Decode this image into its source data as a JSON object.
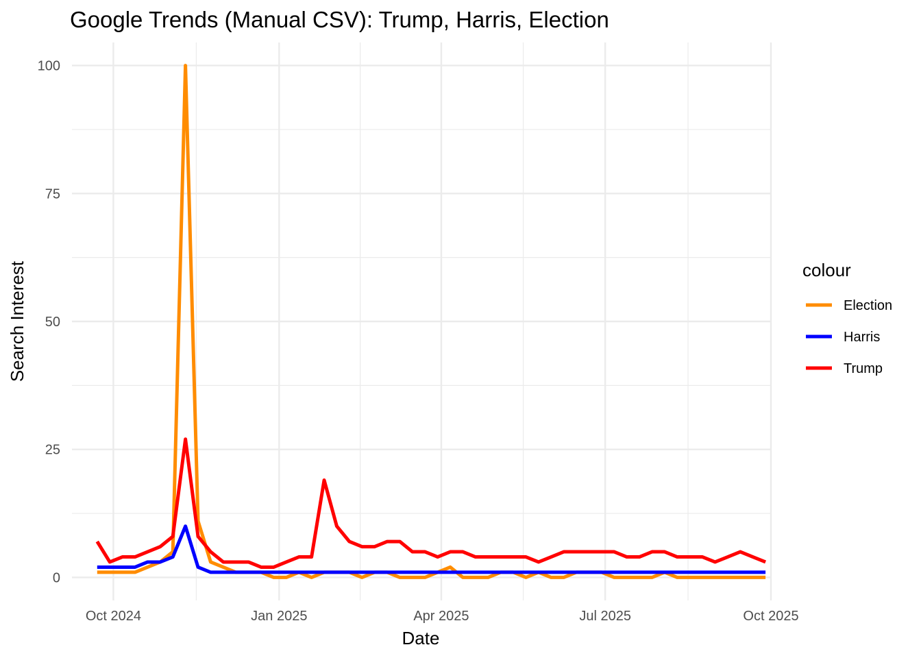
{
  "chart_data": {
    "type": "line",
    "title": "Google Trends (Manual CSV): Trump, Harris, Election",
    "xlabel": "Date",
    "ylabel": "Search Interest",
    "x_tick_labels": [
      "Oct 2024",
      "Jan 2025",
      "Apr 2025",
      "Jul 2025",
      "Oct 2025"
    ],
    "x_tick_dates": [
      "2024-10-01",
      "2025-01-01",
      "2025-04-01",
      "2025-07-01",
      "2025-10-01"
    ],
    "x_range": [
      "2024-09-08",
      "2025-10-01"
    ],
    "y_ticks": [
      0,
      25,
      50,
      75,
      100
    ],
    "y_tick_labels": [
      "0",
      "25",
      "50",
      "75",
      "100"
    ],
    "ylim": [
      -4.5,
      104.5
    ],
    "grid": true,
    "legend": {
      "title": "colour",
      "position": "right"
    },
    "x_start": "2024-09-22",
    "x_step_days": 7,
    "series": [
      {
        "name": "Election",
        "color": "#FF8C00",
        "values": [
          1,
          1,
          1,
          1,
          2,
          3,
          5,
          100,
          11,
          3,
          2,
          1,
          1,
          1,
          0,
          0,
          1,
          0,
          1,
          1,
          1,
          0,
          1,
          1,
          0,
          0,
          0,
          1,
          2,
          0,
          0,
          0,
          1,
          1,
          0,
          1,
          0,
          0,
          1,
          1,
          1,
          0,
          0,
          0,
          0,
          1,
          0,
          0,
          0,
          0,
          0,
          0,
          0,
          0
        ]
      },
      {
        "name": "Harris",
        "color": "#0000FF",
        "values": [
          2,
          2,
          2,
          2,
          3,
          3,
          4,
          10,
          2,
          1,
          1,
          1,
          1,
          1,
          1,
          1,
          1,
          1,
          1,
          1,
          1,
          1,
          1,
          1,
          1,
          1,
          1,
          1,
          1,
          1,
          1,
          1,
          1,
          1,
          1,
          1,
          1,
          1,
          1,
          1,
          1,
          1,
          1,
          1,
          1,
          1,
          1,
          1,
          1,
          1,
          1,
          1,
          1,
          1
        ]
      },
      {
        "name": "Trump",
        "color": "#FF0000",
        "values": [
          7,
          3,
          4,
          4,
          5,
          6,
          8,
          27,
          8,
          5,
          3,
          3,
          3,
          2,
          2,
          3,
          4,
          4,
          19,
          10,
          7,
          6,
          6,
          7,
          7,
          5,
          5,
          4,
          5,
          5,
          4,
          4,
          4,
          4,
          4,
          3,
          4,
          5,
          5,
          5,
          5,
          5,
          4,
          4,
          5,
          5,
          4,
          4,
          4,
          3,
          4,
          5,
          4,
          3
        ]
      }
    ]
  }
}
